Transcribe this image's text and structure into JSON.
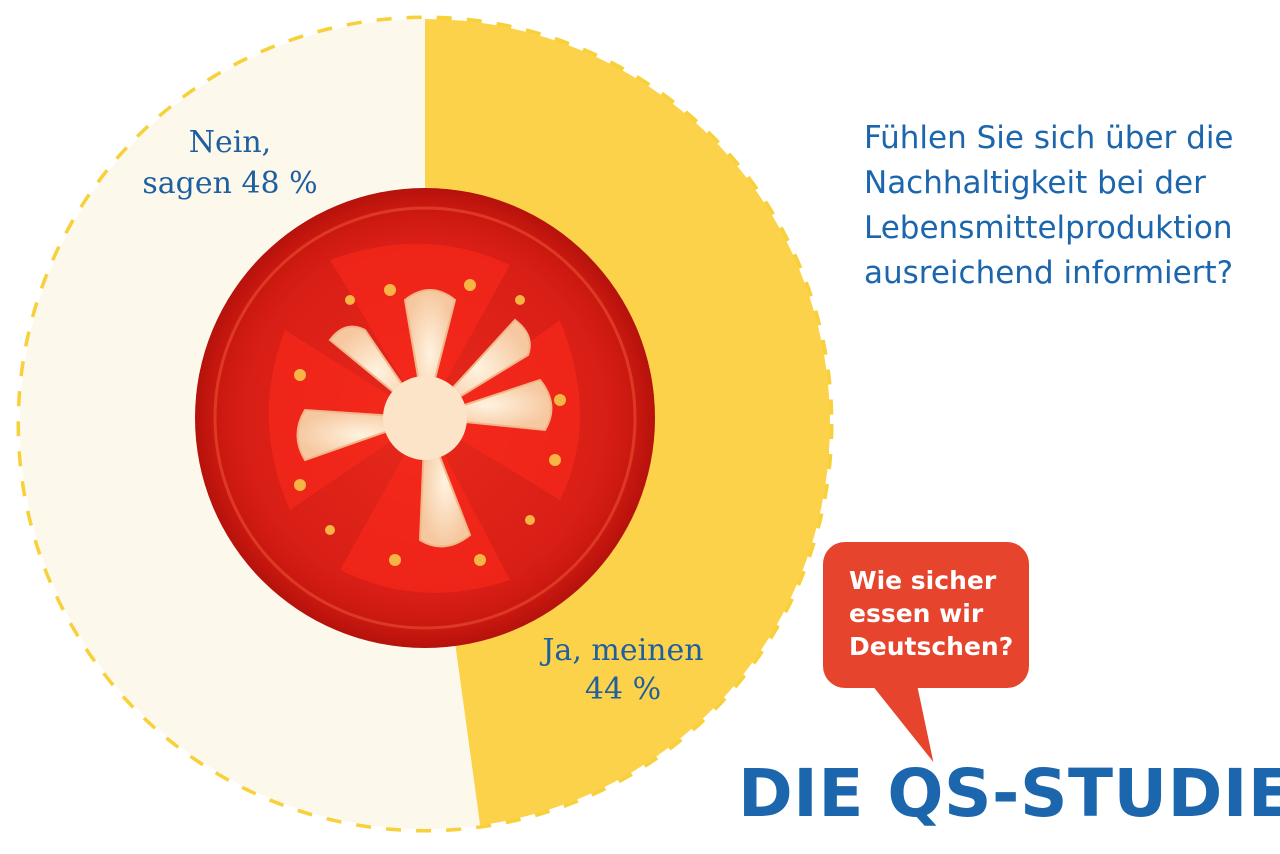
{
  "chart_data": {
    "type": "pie",
    "slices": [
      {
        "label_line1": "Nein,",
        "label_line2": "sagen 48 %",
        "value": 48,
        "color": "#fdf8ec"
      },
      {
        "label_line1": "Ja, meinen",
        "label_line2": "44 %",
        "value": 44,
        "color": "#fcd24a"
      }
    ],
    "ring_color": "#f7d03a",
    "label_color": "#1f5fa0"
  },
  "question": "Fühlen Sie sich über die\nNachhaltigkeit bei der\nLebensmittelproduktion\nausreichend informiert?",
  "bubble": {
    "text": "Wie sicher\nessen wir\nDeutschen?",
    "color": "#e6442c"
  },
  "brand": "DIE QS-STUDIE",
  "colors": {
    "accent": "#1b66ad"
  },
  "icons": {
    "center_image": "tomato-slice-icon"
  }
}
